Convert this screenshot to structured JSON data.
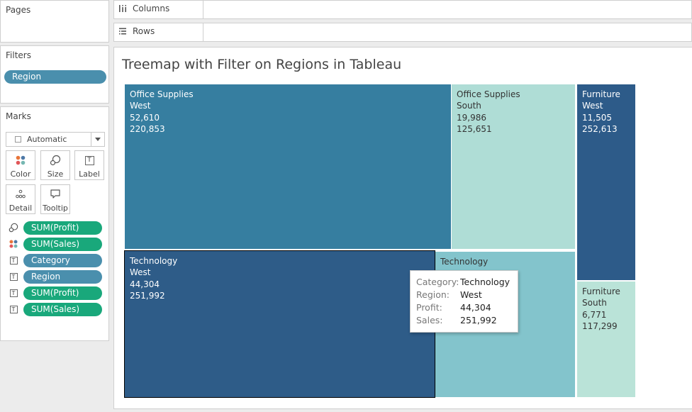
{
  "pages_panel": {
    "title": "Pages"
  },
  "filters_panel": {
    "title": "Filters",
    "pills": [
      {
        "label": "Region"
      }
    ]
  },
  "marks_panel": {
    "title": "Marks",
    "mark_type": "Automatic",
    "buttons": [
      {
        "label": "Color",
        "icon": "color-dots-icon"
      },
      {
        "label": "Size",
        "icon": "size-icon"
      },
      {
        "label": "Label",
        "icon": "label-text-icon"
      },
      {
        "label": "Detail",
        "icon": "detail-dots-icon"
      },
      {
        "label": "Tooltip",
        "icon": "tooltip-icon"
      }
    ],
    "shelf": [
      {
        "icon": "size-icon",
        "label": "SUM(Profit)",
        "color": "#19a87b"
      },
      {
        "icon": "color-dots-icon",
        "label": "SUM(Sales)",
        "color": "#19a87b"
      },
      {
        "icon": "label-text-icon",
        "label": "Category",
        "color": "#4a8fad"
      },
      {
        "icon": "label-text-icon",
        "label": "Region",
        "color": "#4a8fad"
      },
      {
        "icon": "label-text-icon",
        "label": "SUM(Profit)",
        "color": "#19a87b"
      },
      {
        "icon": "label-text-icon",
        "label": "SUM(Sales)",
        "color": "#19a87b"
      }
    ]
  },
  "shelves": {
    "columns": "Columns",
    "rows": "Rows"
  },
  "viz": {
    "title": "Treemap with Filter on Regions in Tableau",
    "tiles": [
      {
        "category": "Office Supplies",
        "region": "West",
        "profit": "52,610",
        "sales": "220,853",
        "color": "#367ea0"
      },
      {
        "category": "Office Supplies",
        "region": "South",
        "profit": "19,986",
        "sales": "125,651",
        "color": "#afddd6"
      },
      {
        "category": "Furniture",
        "region": "West",
        "profit": "11,505",
        "sales": "252,613",
        "color": "#2d5b89"
      },
      {
        "category": "Technology",
        "region": "West",
        "profit": "44,304",
        "sales": "251,992",
        "color": "#2e5c88"
      },
      {
        "category": "Technology",
        "region": "",
        "profit": "",
        "sales": "",
        "color": "#83c4cc"
      },
      {
        "category": "Furniture",
        "region": "South",
        "profit": "6,771",
        "sales": "117,299",
        "color": "#bae3d8"
      }
    ],
    "tooltip": {
      "rows": [
        {
          "key": "Category:",
          "value": "Technology"
        },
        {
          "key": "Region:",
          "value": "West"
        },
        {
          "key": "Profit:",
          "value": "44,304"
        },
        {
          "key": "Sales:",
          "value": "251,992"
        }
      ]
    }
  }
}
